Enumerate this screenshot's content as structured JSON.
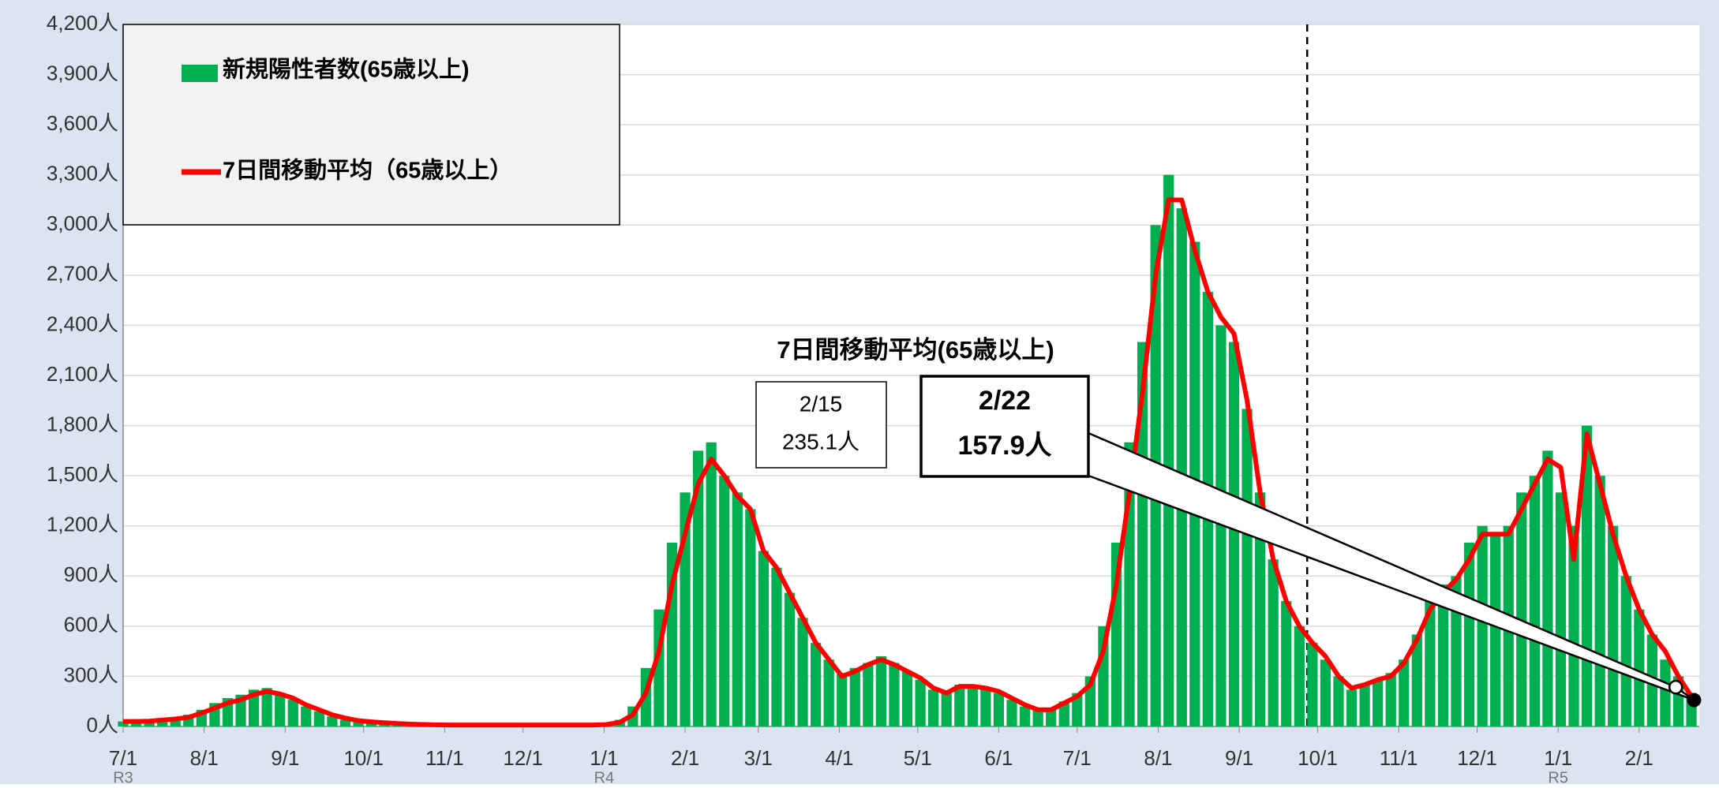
{
  "chart_data": {
    "type": "bar",
    "legend": "top-left",
    "x": [
      0,
      5,
      10,
      15,
      20,
      25,
      30,
      35,
      40,
      45,
      50,
      55,
      60,
      65,
      70,
      75,
      80,
      85,
      90,
      95,
      100,
      105,
      110,
      115,
      120,
      125,
      130,
      135,
      140,
      145,
      150,
      155,
      160,
      165,
      170,
      175,
      180,
      185,
      190,
      195,
      200,
      205,
      210,
      215,
      220,
      225,
      230,
      235,
      240,
      245,
      250,
      255,
      260,
      265,
      270,
      275,
      280,
      285,
      290,
      295,
      300,
      305,
      310,
      315,
      320,
      325,
      330,
      335,
      340,
      345,
      350,
      355,
      360,
      365,
      370,
      375,
      380,
      385,
      390,
      395,
      400,
      405,
      410,
      415,
      420,
      425,
      430,
      435,
      440,
      445,
      450,
      455,
      460,
      465,
      470,
      475,
      480,
      485,
      490,
      495,
      500,
      505,
      510,
      515,
      520,
      525,
      530,
      535,
      540,
      545,
      550,
      555,
      560,
      565,
      570,
      575,
      580,
      585,
      590,
      595,
      600
    ],
    "series": [
      {
        "name": "新規陽性者数(65歳以上)",
        "type": "bar",
        "color": "#00b050",
        "values": [
          30,
          30,
          35,
          40,
          50,
          70,
          100,
          140,
          170,
          190,
          220,
          230,
          200,
          160,
          120,
          90,
          60,
          40,
          30,
          25,
          20,
          15,
          12,
          10,
          10,
          8,
          8,
          8,
          8,
          8,
          8,
          8,
          8,
          8,
          8,
          8,
          8,
          15,
          40,
          120,
          350,
          700,
          1100,
          1400,
          1650,
          1700,
          1500,
          1400,
          1300,
          1050,
          950,
          800,
          650,
          500,
          400,
          320,
          350,
          380,
          420,
          380,
          330,
          280,
          220,
          200,
          250,
          240,
          230,
          200,
          160,
          120,
          100,
          110,
          150,
          200,
          300,
          600,
          1100,
          1700,
          2300,
          3000,
          3300,
          3100,
          2900,
          2600,
          2400,
          2300,
          1900,
          1400,
          1000,
          750,
          600,
          500,
          400,
          300,
          220,
          250,
          280,
          320,
          400,
          550,
          750,
          850,
          900,
          1100,
          1200,
          1150,
          1200,
          1400,
          1500,
          1650,
          1400,
          1200,
          1800,
          1500,
          1200,
          900,
          700,
          550,
          400,
          300,
          200
        ]
      },
      {
        "name": "7日間移動平均（65歳以上）",
        "type": "line",
        "color": "#ff0000",
        "values": [
          30,
          30,
          32,
          38,
          45,
          55,
          80,
          110,
          140,
          160,
          190,
          210,
          195,
          170,
          130,
          100,
          70,
          50,
          35,
          28,
          22,
          18,
          14,
          12,
          10,
          9,
          9,
          9,
          9,
          9,
          9,
          9,
          9,
          9,
          9,
          9,
          9,
          12,
          25,
          70,
          200,
          450,
          850,
          1150,
          1450,
          1600,
          1500,
          1380,
          1300,
          1050,
          950,
          800,
          650,
          500,
          400,
          300,
          330,
          370,
          400,
          370,
          330,
          290,
          230,
          200,
          240,
          240,
          230,
          210,
          170,
          130,
          100,
          100,
          140,
          180,
          250,
          450,
          850,
          1400,
          2000,
          2700,
          3150,
          3150,
          2850,
          2600,
          2450,
          2350,
          1950,
          1400,
          1000,
          750,
          600,
          500,
          420,
          300,
          230,
          250,
          280,
          300,
          380,
          520,
          700,
          800,
          880,
          1000,
          1150,
          1150,
          1150,
          1300,
          1450,
          1600,
          1550,
          1000,
          1750,
          1450,
          1150,
          900,
          700,
          550,
          450,
          300,
          180
        ]
      }
    ],
    "xlim": [
      0,
      603
    ],
    "xticks": [
      {
        "value": 0,
        "label": "7/1"
      },
      {
        "value": 31,
        "label": "8/1"
      },
      {
        "value": 62,
        "label": "9/1"
      },
      {
        "value": 92,
        "label": "10/1"
      },
      {
        "value": 123,
        "label": "11/1"
      },
      {
        "value": 153,
        "label": "12/1"
      },
      {
        "value": 184,
        "label": "1/1"
      },
      {
        "value": 215,
        "label": "2/1"
      },
      {
        "value": 243,
        "label": "3/1"
      },
      {
        "value": 274,
        "label": "4/1"
      },
      {
        "value": 304,
        "label": "5/1"
      },
      {
        "value": 335,
        "label": "6/1"
      },
      {
        "value": 365,
        "label": "7/1"
      },
      {
        "value": 396,
        "label": "8/1"
      },
      {
        "value": 427,
        "label": "9/1"
      },
      {
        "value": 457,
        "label": "10/1"
      },
      {
        "value": 488,
        "label": "11/1"
      },
      {
        "value": 518,
        "label": "12/1"
      },
      {
        "value": 549,
        "label": "1/1"
      },
      {
        "value": 580,
        "label": "2/1"
      }
    ],
    "era_ticks": [
      {
        "value": 0,
        "label": "R3"
      },
      {
        "value": 184,
        "label": "R4"
      },
      {
        "value": 549,
        "label": "R5"
      }
    ],
    "ylim": [
      0,
      4200
    ],
    "yticks": [
      {
        "value": 0,
        "label": "0人"
      },
      {
        "value": 300,
        "label": "300人"
      },
      {
        "value": 600,
        "label": "600人"
      },
      {
        "value": 900,
        "label": "900人"
      },
      {
        "value": 1200,
        "label": "1,200人"
      },
      {
        "value": 1500,
        "label": "1,500人"
      },
      {
        "value": 1800,
        "label": "1,800人"
      },
      {
        "value": 2100,
        "label": "2,100人"
      },
      {
        "value": 2400,
        "label": "2,400人"
      },
      {
        "value": 2700,
        "label": "2,700人"
      },
      {
        "value": 3000,
        "label": "3,000人"
      },
      {
        "value": 3300,
        "label": "3,300人"
      },
      {
        "value": 3600,
        "label": "3,600人"
      },
      {
        "value": 3900,
        "label": "3,900人"
      },
      {
        "value": 4200,
        "label": "4,200人"
      }
    ],
    "grid": true,
    "vline": 453,
    "annotation_title": "7日間移動平均(65歳以上)",
    "callouts": [
      {
        "date": "2/15",
        "label": "235.1人",
        "x": 594,
        "value": 235.1
      },
      {
        "date": "2/22",
        "label": "157.9人",
        "x": 601,
        "value": 157.9
      }
    ]
  }
}
